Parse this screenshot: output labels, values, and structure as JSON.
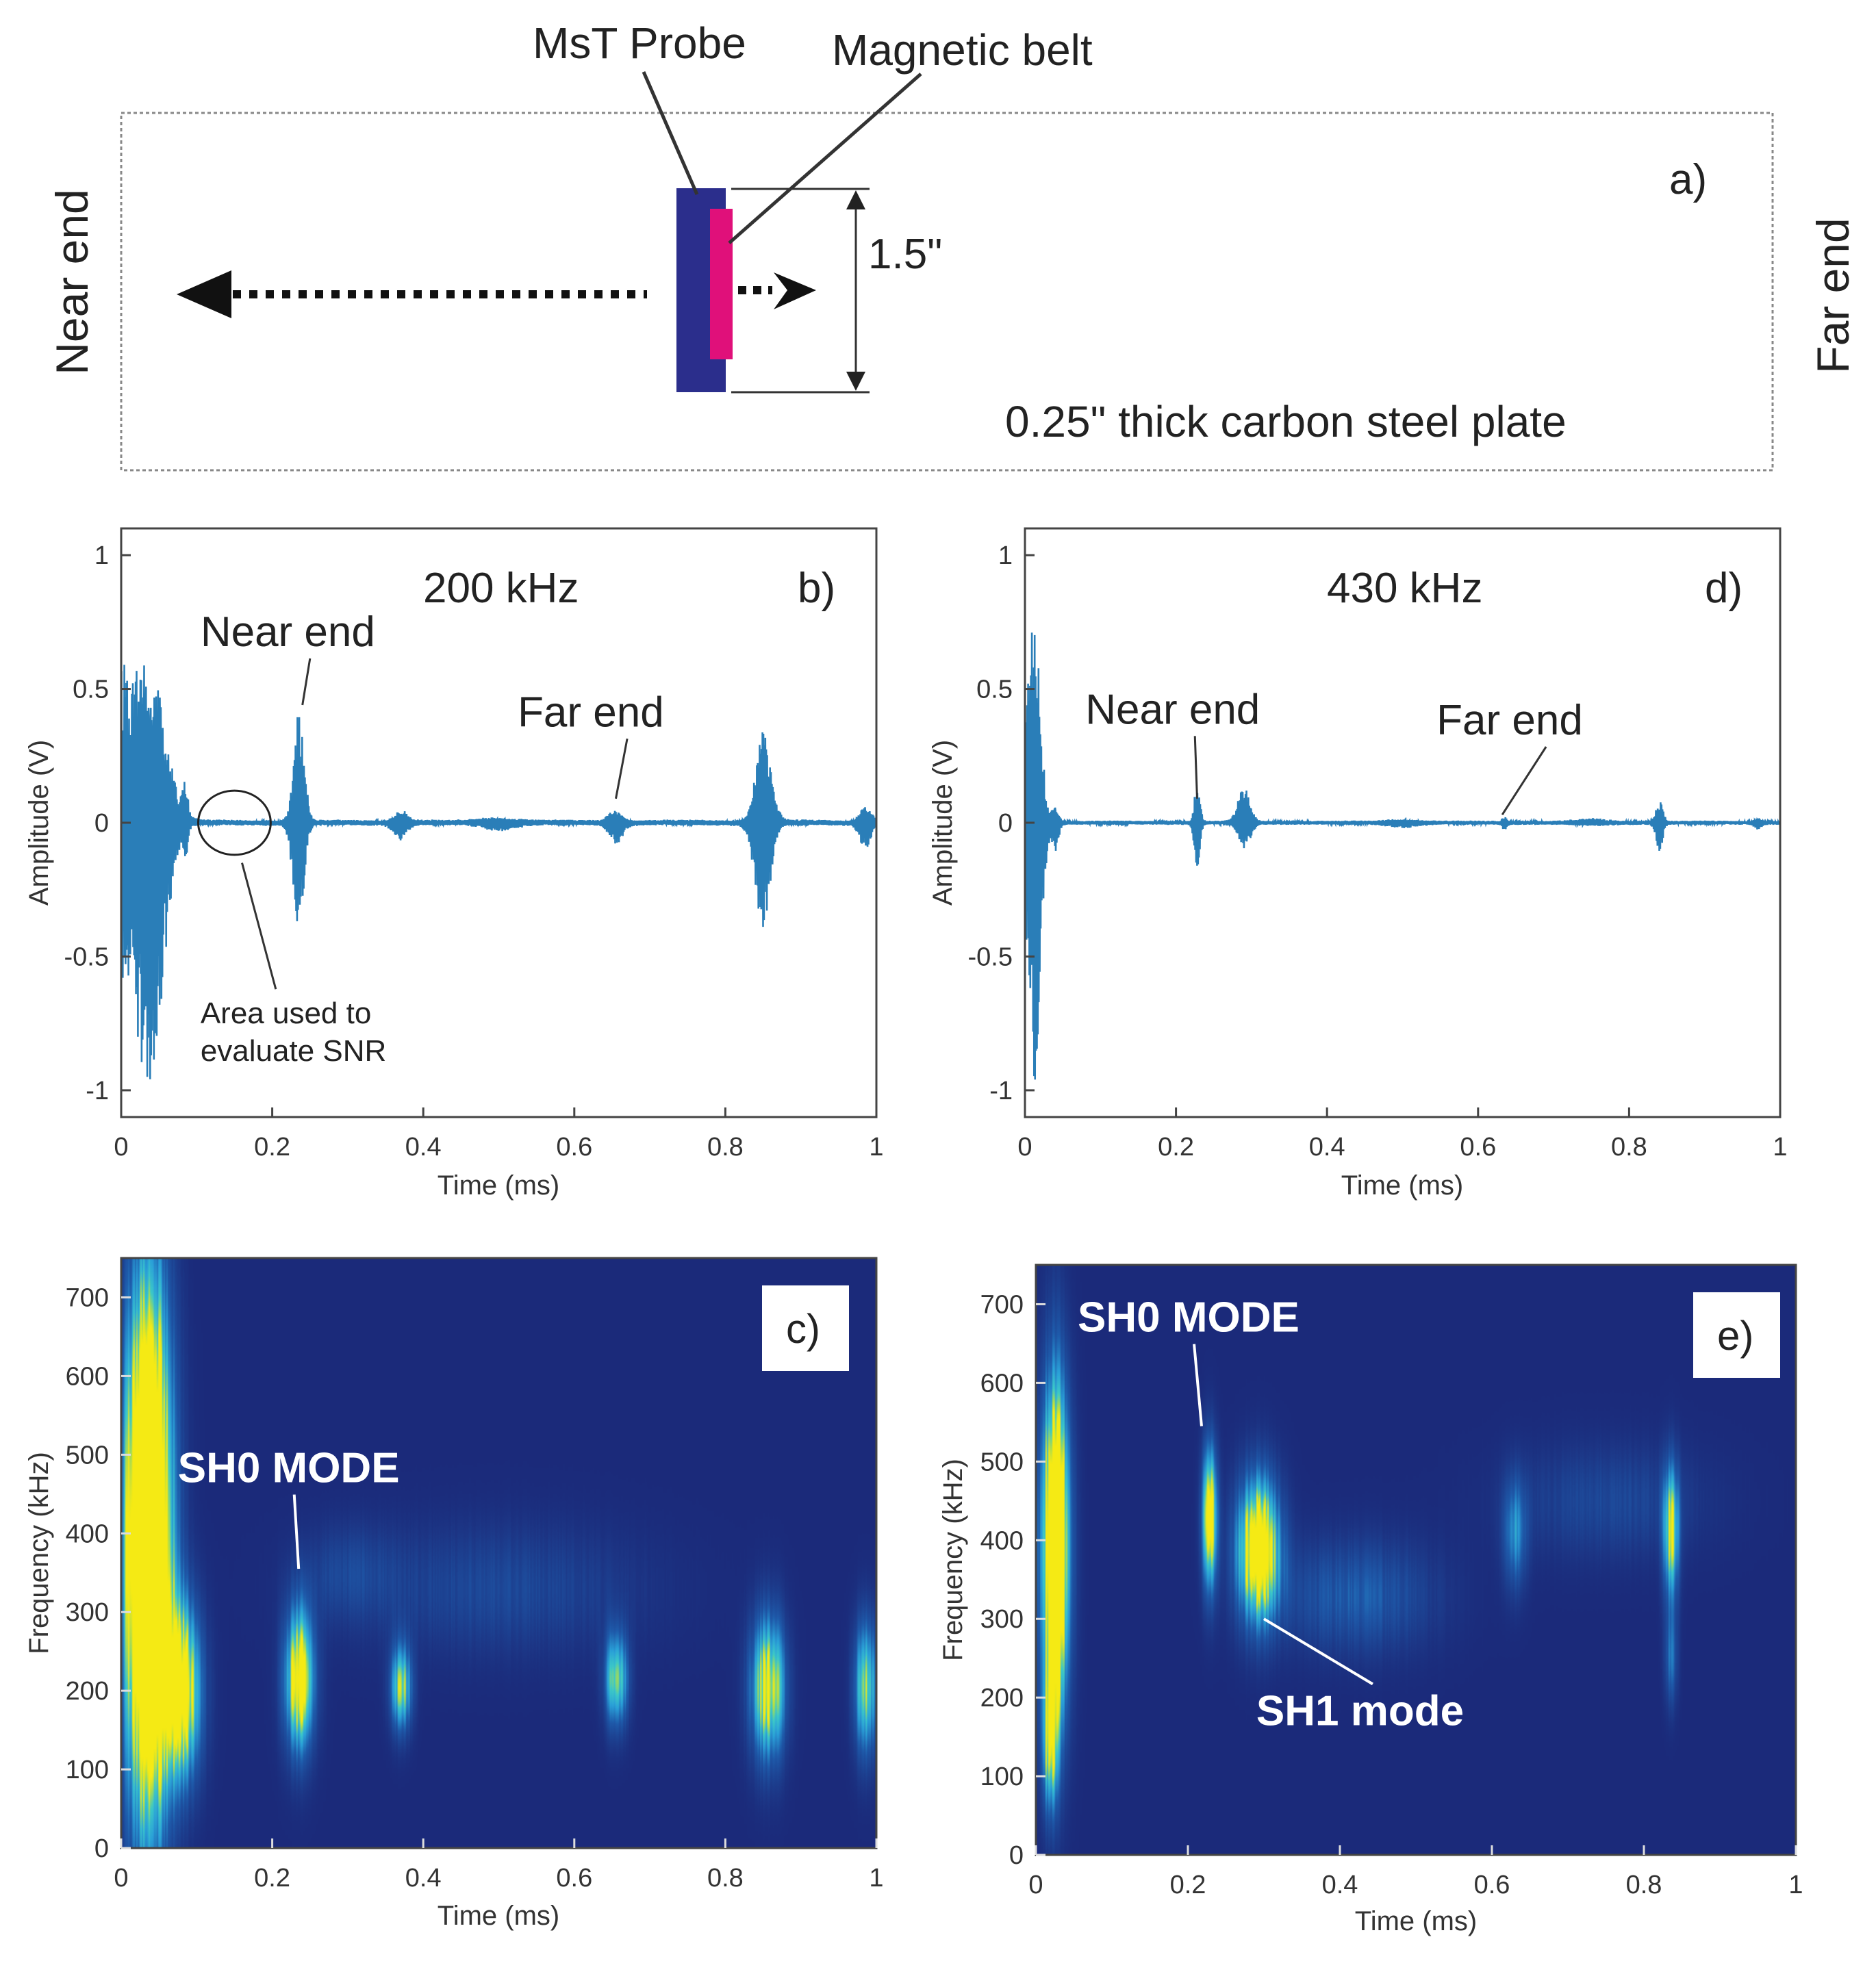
{
  "colors": {
    "signal": "#1f77b4",
    "probe": "#2b2e8c",
    "belt": "#e0107a",
    "spec_bg": "#1b2a7a",
    "spec_mid": "#2a9fd8",
    "spec_hot": "#f5ea14",
    "axis": "#222222"
  },
  "panel_a": {
    "label": "a)",
    "probe_label": "MsT Probe",
    "belt_label": "Magnetic belt",
    "dimension_label": "1.5\"",
    "plate_label": "0.25\" thick carbon steel plate",
    "near_end_label": "Near end",
    "far_end_label": "Far end"
  },
  "chart_data": [
    {
      "id": "b",
      "type": "line",
      "panel_label": "b)",
      "title": "200 kHz",
      "xlabel": "Time (ms)",
      "ylabel": "Amplitude (V)",
      "xlim": [
        0,
        1
      ],
      "ylim": [
        -1.1,
        1.1
      ],
      "xticks": [
        0,
        0.2,
        0.4,
        0.6,
        0.8,
        1
      ],
      "xtick_labels": [
        "0",
        "0.2",
        "0.4",
        "0.6",
        "0.8",
        "1"
      ],
      "yticks": [
        -1,
        -0.5,
        0,
        0.5,
        1
      ],
      "ytick_labels": [
        "-1",
        "-0.5",
        "0",
        "0.5",
        "1"
      ],
      "noise_level": 0.012,
      "seed": 7,
      "packets": [
        {
          "t": 0.0,
          "w": 0.012,
          "a": 0.45
        },
        {
          "t": 0.035,
          "w": 0.028,
          "a": 1.02
        },
        {
          "t": 0.085,
          "w": 0.004,
          "a": 0.15
        },
        {
          "t": 0.235,
          "w": 0.01,
          "a": 0.46
        },
        {
          "t": 0.37,
          "w": 0.012,
          "a": 0.06
        },
        {
          "t": 0.5,
          "w": 0.03,
          "a": 0.02
        },
        {
          "t": 0.655,
          "w": 0.012,
          "a": 0.07
        },
        {
          "t": 0.85,
          "w": 0.014,
          "a": 0.43
        },
        {
          "t": 0.985,
          "w": 0.01,
          "a": 0.09
        }
      ],
      "annotations": [
        {
          "id": "near-end",
          "text": "Near end",
          "target": [
            0.24,
            0.44
          ],
          "label_pos": [
            0.105,
            0.66
          ]
        },
        {
          "id": "far-end",
          "text": "Far end",
          "target": [
            0.655,
            0.09
          ],
          "label_pos": [
            0.525,
            0.36
          ]
        },
        {
          "id": "snr-area-1",
          "text": "Area used to",
          "target": [
            0.16,
            -0.15
          ],
          "label_pos": [
            0.105,
            -0.75
          ]
        },
        {
          "id": "snr-area-2",
          "text": "evaluate SNR",
          "target": null,
          "label_pos": [
            0.105,
            -0.89
          ]
        }
      ],
      "snr_ellipse": {
        "t_center": 0.15,
        "t_half": 0.048,
        "v_half": 0.12
      }
    },
    {
      "id": "d",
      "type": "line",
      "panel_label": "d)",
      "title": "430 kHz",
      "xlabel": "Time (ms)",
      "ylabel": "Amplitude (V)",
      "xlim": [
        0,
        1
      ],
      "ylim": [
        -1.1,
        1.1
      ],
      "xticks": [
        0,
        0.2,
        0.4,
        0.6,
        0.8,
        1
      ],
      "xtick_labels": [
        "0",
        "0.2",
        "0.4",
        "0.6",
        "0.8",
        "1"
      ],
      "yticks": [
        -1,
        -0.5,
        0,
        0.5,
        1
      ],
      "ytick_labels": [
        "-1",
        "-0.5",
        "0",
        "0.5",
        "1"
      ],
      "noise_level": 0.008,
      "seed": 11,
      "packets": [
        {
          "t": 0.012,
          "w": 0.012,
          "a": 1.04
        },
        {
          "t": 0.04,
          "w": 0.006,
          "a": 0.1
        },
        {
          "t": 0.228,
          "w": 0.005,
          "a": 0.18
        },
        {
          "t": 0.29,
          "w": 0.011,
          "a": 0.13
        },
        {
          "t": 0.5,
          "w": 0.03,
          "a": 0.012
        },
        {
          "t": 0.635,
          "w": 0.004,
          "a": 0.025
        },
        {
          "t": 0.75,
          "w": 0.03,
          "a": 0.01
        },
        {
          "t": 0.84,
          "w": 0.006,
          "a": 0.11
        },
        {
          "t": 0.97,
          "w": 0.006,
          "a": 0.02
        }
      ],
      "annotations": [
        {
          "id": "near-end",
          "text": "Near end",
          "target": [
            0.228,
            0.09
          ],
          "label_pos": [
            0.08,
            0.37
          ]
        },
        {
          "id": "far-end",
          "text": "Far end",
          "target": [
            0.632,
            0.03
          ],
          "label_pos": [
            0.545,
            0.33
          ]
        }
      ]
    },
    {
      "id": "c",
      "type": "heatmap",
      "panel_label": "c)",
      "xlabel": "Time (ms)",
      "ylabel": "Frequency (kHz)",
      "xlim": [
        0,
        1
      ],
      "ylim": [
        0,
        750
      ],
      "xticks": [
        0,
        0.2,
        0.4,
        0.6,
        0.8,
        1
      ],
      "xtick_labels": [
        "0",
        "0.2",
        "0.4",
        "0.6",
        "0.8",
        "1"
      ],
      "yticks": [
        0,
        100,
        200,
        300,
        400,
        500,
        600,
        700
      ],
      "ytick_labels": [
        "0",
        "100",
        "200",
        "300",
        "400",
        "500",
        "600",
        "700"
      ],
      "blobs": [
        {
          "t": 0.035,
          "f": 380,
          "wt": 0.03,
          "wf": 330,
          "i": 2.2
        },
        {
          "t": 0.08,
          "f": 200,
          "wt": 0.025,
          "wf": 110,
          "i": 1.2
        },
        {
          "t": 0.235,
          "f": 215,
          "wt": 0.02,
          "wf": 90,
          "i": 1.2
        },
        {
          "t": 0.37,
          "f": 205,
          "wt": 0.014,
          "wf": 55,
          "i": 0.9
        },
        {
          "t": 0.655,
          "f": 215,
          "wt": 0.015,
          "wf": 60,
          "i": 0.9
        },
        {
          "t": 0.855,
          "f": 205,
          "wt": 0.022,
          "wf": 90,
          "i": 1.15
        },
        {
          "t": 0.985,
          "f": 205,
          "wt": 0.015,
          "wf": 85,
          "i": 0.9
        },
        {
          "t": 0.5,
          "f": 330,
          "wt": 0.18,
          "wf": 80,
          "i": 0.22
        },
        {
          "t": 0.3,
          "f": 350,
          "wt": 0.06,
          "wf": 60,
          "i": 0.18
        }
      ],
      "annotations": [
        {
          "id": "sh0-mode",
          "text": "SH0 MODE",
          "target": [
            0.235,
            355
          ],
          "label_pos": [
            0.075,
            465
          ]
        }
      ]
    },
    {
      "id": "e",
      "type": "heatmap",
      "panel_label": "e)",
      "xlabel": "Time (ms)",
      "ylabel": "Frequency (kHz)",
      "xlim": [
        0,
        1
      ],
      "ylim": [
        0,
        750
      ],
      "xticks": [
        0,
        0.2,
        0.4,
        0.6,
        0.8,
        1
      ],
      "xtick_labels": [
        "0",
        "0.2",
        "0.4",
        "0.6",
        "0.8",
        "1"
      ],
      "yticks": [
        0,
        100,
        200,
        300,
        400,
        500,
        600,
        700
      ],
      "ytick_labels": [
        "0",
        "100",
        "200",
        "300",
        "400",
        "500",
        "600",
        "700"
      ],
      "blobs": [
        {
          "t": 0.025,
          "f": 390,
          "wt": 0.018,
          "wf": 210,
          "i": 1.8
        },
        {
          "t": 0.018,
          "f": 150,
          "wt": 0.01,
          "wf": 90,
          "i": 0.9
        },
        {
          "t": 0.228,
          "f": 430,
          "wt": 0.01,
          "wf": 90,
          "i": 1.2
        },
        {
          "t": 0.292,
          "f": 390,
          "wt": 0.028,
          "wf": 90,
          "i": 1.4
        },
        {
          "t": 0.42,
          "f": 330,
          "wt": 0.1,
          "wf": 70,
          "i": 0.35
        },
        {
          "t": 0.63,
          "f": 410,
          "wt": 0.015,
          "wf": 70,
          "i": 0.5
        },
        {
          "t": 0.835,
          "f": 410,
          "wt": 0.01,
          "wf": 85,
          "i": 1.0
        },
        {
          "t": 0.835,
          "f": 250,
          "wt": 0.008,
          "wf": 60,
          "i": 0.45
        },
        {
          "t": 0.75,
          "f": 450,
          "wt": 0.12,
          "wf": 70,
          "i": 0.22
        }
      ],
      "annotations": [
        {
          "id": "sh0-mode",
          "text": "SH0 MODE",
          "target": [
            0.218,
            545
          ],
          "label_pos": [
            0.055,
            665
          ]
        },
        {
          "id": "sh1-mode",
          "text": "SH1 mode",
          "target": [
            0.3,
            300
          ],
          "label_pos": [
            0.29,
            165
          ]
        }
      ]
    }
  ]
}
